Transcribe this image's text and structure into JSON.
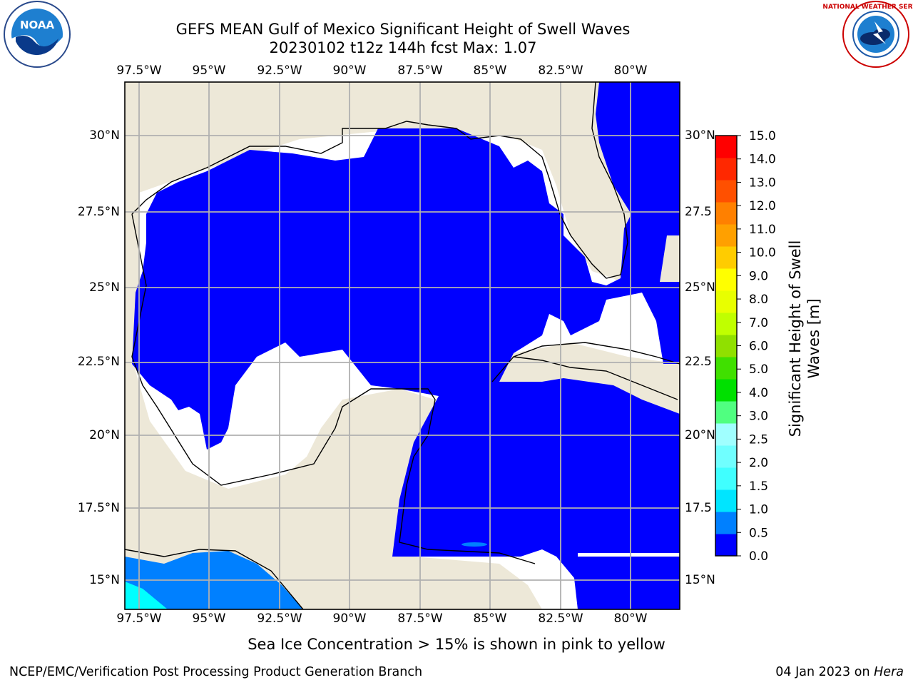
{
  "title_line1": "GEFS MEAN Gulf of Mexico Significant Height of Swell Waves",
  "title_line2": "20230102 t12z 144h fcst   Max: 1.07",
  "lon_labels": [
    "97.5°W",
    "95°W",
    "92.5°W",
    "90°W",
    "87.5°W",
    "85°W",
    "82.5°W",
    "80°W"
  ],
  "lat_labels_left": [
    "30°N",
    "27.5°N",
    "25°N",
    "22.5°N",
    "20°N",
    "17.5°N",
    "15°N"
  ],
  "lat_labels_right": [
    "30°N",
    "27.5",
    "25°N",
    "22.5",
    "20°N",
    "17.5",
    "15°N"
  ],
  "colorbar": {
    "label": "Significant Height of Swell Waves [m]",
    "ticks": [
      "0.0",
      "0.5",
      "1.0",
      "1.5",
      "2.0",
      "2.5",
      "3.0",
      "4.0",
      "5.0",
      "6.0",
      "7.0",
      "8.0",
      "9.0",
      "10.0",
      "11.0",
      "12.0",
      "13.0",
      "14.0",
      "15.0"
    ],
    "colors": [
      "#0000ff",
      "#0080ff",
      "#00e5ff",
      "#40ffff",
      "#70ffff",
      "#a0ffff",
      "#50ff80",
      "#00e000",
      "#40e000",
      "#90e000",
      "#c0ff00",
      "#e8ff00",
      "#ffff00",
      "#ffcc00",
      "#ffa000",
      "#ff8000",
      "#ff5000",
      "#ff2800",
      "#ff0000"
    ]
  },
  "colors": {
    "land": "#ede8d8",
    "ocean_low": "#0000ff",
    "swell_05": "#0080ff",
    "swell_10": "#00ffff",
    "grid": "#b0b0b0"
  },
  "footnote": "Sea Ice Concentration > 15% is shown in pink to yellow",
  "credit_left": "NCEP/EMC/Verification Post Processing Product Generation Branch",
  "credit_right_date": "04 Jan 2023 on",
  "credit_right_host": "Hera",
  "logos": {
    "left": "NOAA",
    "right_seal": "NATIONAL WEATHER SERVICE"
  }
}
